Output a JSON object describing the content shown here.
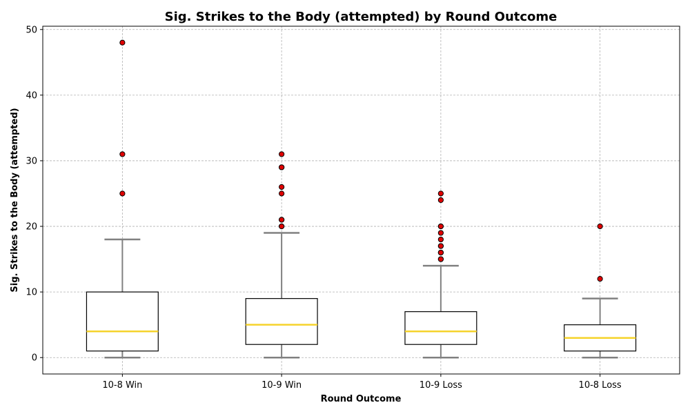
{
  "chart_data": {
    "type": "box",
    "title": "Sig. Strikes to the Body (attempted) by Round Outcome",
    "xlabel": "Round Outcome",
    "ylabel": "Sig. Strikes to the Body (attempted)",
    "ylim": [
      -2.5,
      50.5
    ],
    "yticks": [
      0,
      10,
      20,
      30,
      40,
      50
    ],
    "grid": true,
    "categories": [
      "10-8 Win",
      "10-9 Win",
      "10-9 Loss",
      "10-8 Loss"
    ],
    "boxes": [
      {
        "category": "10-8 Win",
        "whisker_low": 0,
        "q1": 1,
        "median": 4,
        "q3": 10,
        "whisker_high": 18,
        "outliers": [
          25,
          31,
          48
        ]
      },
      {
        "category": "10-9 Win",
        "whisker_low": 0,
        "q1": 2,
        "median": 5,
        "q3": 9,
        "whisker_high": 19,
        "outliers": [
          20,
          20,
          21,
          21,
          25,
          26,
          29,
          29,
          31
        ]
      },
      {
        "category": "10-9 Loss",
        "whisker_low": 0,
        "q1": 2,
        "median": 4,
        "q3": 7,
        "whisker_high": 14,
        "outliers": [
          15,
          15,
          16,
          16,
          17,
          17,
          18,
          19,
          20,
          20,
          24,
          25
        ]
      },
      {
        "category": "10-8 Loss",
        "whisker_low": 0,
        "q1": 1,
        "median": 3,
        "q3": 5,
        "whisker_high": 9,
        "outliers": [
          12,
          20
        ]
      }
    ],
    "colors": {
      "box_edge": "#000000",
      "box_fill": "#ffffff",
      "median": "#f5d32a",
      "whisker": "#808080",
      "outlier_fill": "#e00000",
      "outlier_edge": "#000000",
      "grid": "#b0b0b0"
    }
  }
}
